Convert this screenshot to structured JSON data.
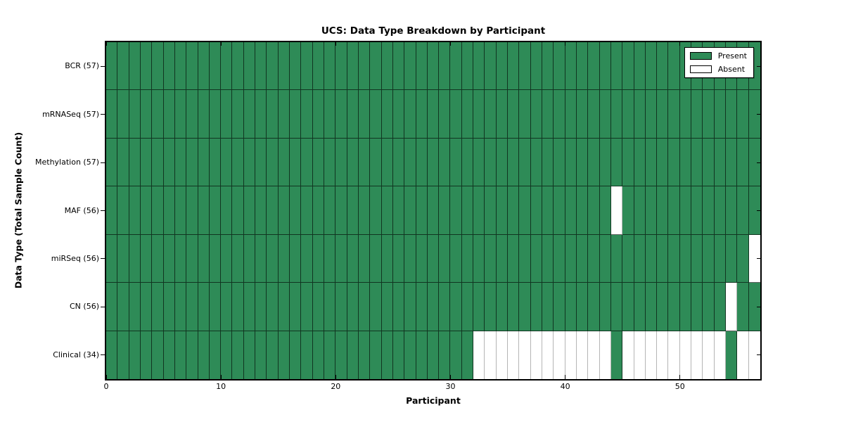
{
  "chart_data": {
    "type": "heatmap",
    "title": "UCS: Data Type Breakdown by Participant",
    "xlabel": "Participant",
    "ylabel": "Data Type (Total Sample Count)",
    "x_tick_values": [
      0,
      10,
      20,
      30,
      40,
      50
    ],
    "n_participants": 57,
    "x_range": [
      0,
      57
    ],
    "grid": "cell-borders",
    "colors": {
      "present": "#2e8b57",
      "absent": "#ffffff"
    },
    "legend": {
      "position": "upper-right",
      "entries": [
        {
          "label": "Present",
          "color": "#2e8b57"
        },
        {
          "label": "Absent",
          "color": "#ffffff"
        }
      ]
    },
    "rows": [
      {
        "label": "BCR (57)",
        "data_type": "BCR",
        "total_samples": 57,
        "absent_participants": []
      },
      {
        "label": "mRNASeq (57)",
        "data_type": "mRNASeq",
        "total_samples": 57,
        "absent_participants": []
      },
      {
        "label": "Methylation (57)",
        "data_type": "Methylation",
        "total_samples": 57,
        "absent_participants": []
      },
      {
        "label": "MAF (56)",
        "data_type": "MAF",
        "total_samples": 56,
        "absent_participants": [
          44
        ]
      },
      {
        "label": "miRSeq (56)",
        "data_type": "miRSeq",
        "total_samples": 56,
        "absent_participants": [
          56
        ]
      },
      {
        "label": "CN (56)",
        "data_type": "CN",
        "total_samples": 56,
        "absent_participants": [
          54
        ]
      },
      {
        "label": "Clinical (34)",
        "data_type": "Clinical",
        "total_samples": 34,
        "absent_participants": [
          32,
          33,
          34,
          35,
          36,
          37,
          38,
          39,
          40,
          41,
          42,
          43,
          45,
          46,
          47,
          48,
          49,
          50,
          51,
          52,
          53,
          55,
          56
        ]
      }
    ]
  }
}
